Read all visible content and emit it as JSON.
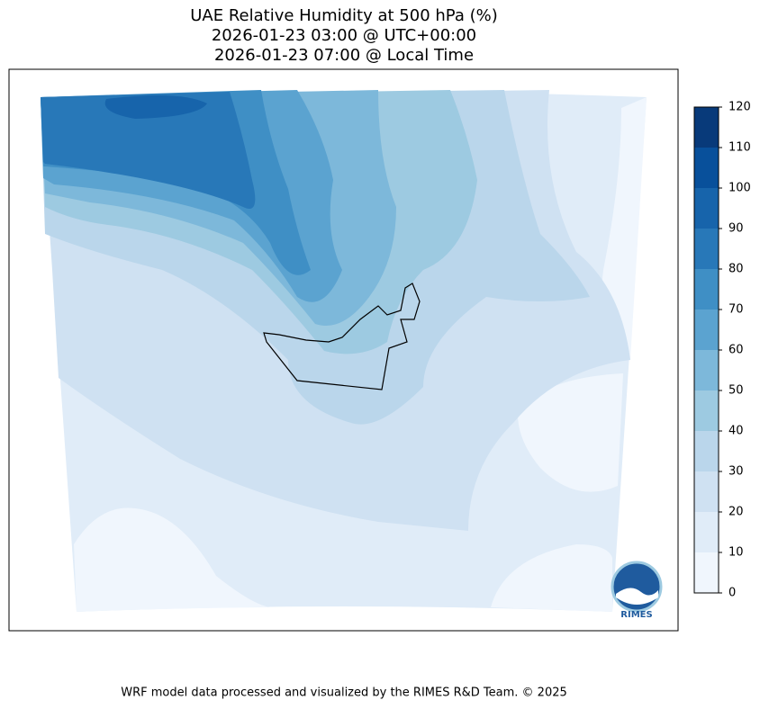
{
  "chart_data": {
    "type": "contour-map",
    "title": [
      "UAE Relative Humidity at 500 hPa (%)",
      "2026-01-23 03:00 @ UTC+00:00",
      "2026-01-23 07:00 @ Local Time"
    ],
    "clim": [
      0,
      120
    ],
    "cticks": [
      0,
      10,
      20,
      30,
      40,
      50,
      60,
      70,
      80,
      90,
      100,
      110,
      120
    ],
    "colors": [
      "#f0f6fd",
      "#e0ecf8",
      "#cfe1f2",
      "#bad6eb",
      "#9dcae1",
      "#7db8da",
      "#5ba3d0",
      "#3f8fc5",
      "#2878b8",
      "#1764ab",
      "#08509b",
      "#083a7a"
    ],
    "footer": "WRF model data processed and visualized by the RIMES R&D Team. © 2025",
    "logo_text": "RIMES"
  }
}
